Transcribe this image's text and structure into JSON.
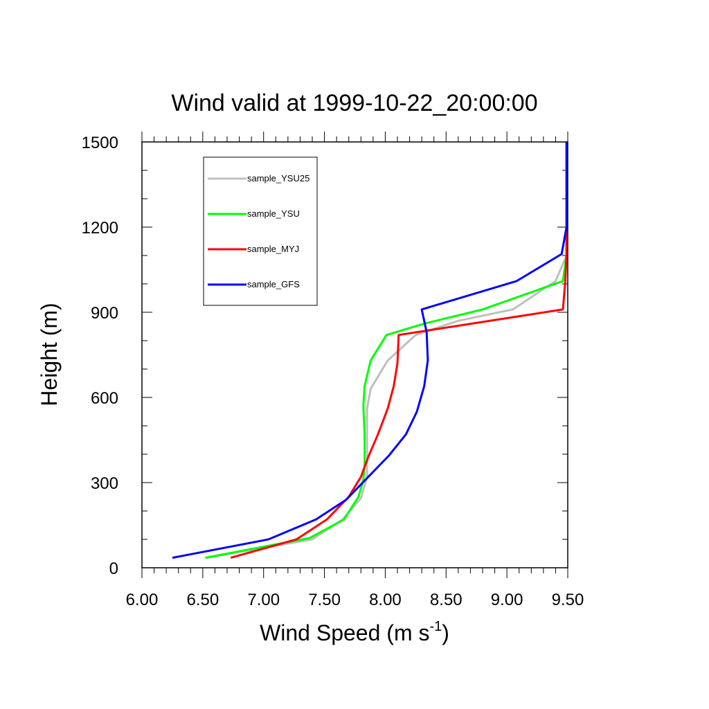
{
  "chart_data": {
    "type": "line",
    "title": "Wind valid at 1999-10-22_20:00:00",
    "xlabel": "Wind Speed (m s",
    "xlabel_sup": "-1",
    "xlabel_tail": ")",
    "ylabel": "Height (m)",
    "xlim": [
      6.0,
      9.5
    ],
    "ylim": [
      0,
      1500
    ],
    "x_ticks": [
      "6.00",
      "6.50",
      "7.00",
      "7.50",
      "8.00",
      "8.50",
      "9.00",
      "9.50"
    ],
    "y_ticks": [
      "0",
      "300",
      "600",
      "900",
      "1200",
      "1500"
    ],
    "legend_position": "top-left",
    "series": [
      {
        "name": "sample_YSU25",
        "color": "#bfbfbf",
        "x": [
          6.53,
          7.4,
          7.65,
          7.8,
          7.85,
          7.85,
          7.85,
          7.85,
          7.88,
          8.02,
          8.25,
          8.6,
          9.05,
          9.4,
          9.49,
          9.49,
          9.49
        ],
        "y": [
          35,
          100,
          170,
          245,
          320,
          400,
          480,
          560,
          630,
          730,
          820,
          870,
          910,
          1010,
          1100,
          1200,
          1500
        ]
      },
      {
        "name": "sample_YSU",
        "color": "#00ff00",
        "x": [
          6.52,
          7.38,
          7.66,
          7.78,
          7.82,
          7.83,
          7.83,
          7.82,
          7.83,
          7.88,
          8.01,
          8.32,
          8.8,
          9.46,
          9.49,
          9.49
        ],
        "y": [
          35,
          105,
          170,
          250,
          310,
          360,
          470,
          570,
          640,
          730,
          820,
          860,
          910,
          1010,
          1100,
          1200
        ]
      },
      {
        "name": "sample_MYJ",
        "color": "#ff0000",
        "x": [
          6.73,
          7.27,
          7.52,
          7.7,
          7.8,
          7.86,
          7.94,
          8.02,
          8.07,
          8.1,
          8.11,
          9.46,
          9.48,
          9.49,
          9.49
        ],
        "y": [
          35,
          100,
          170,
          250,
          320,
          390,
          470,
          560,
          640,
          720,
          820,
          910,
          1010,
          1100,
          1200
        ]
      },
      {
        "name": "sample_GFS",
        "color": "#0000ff",
        "x": [
          6.25,
          7.04,
          7.43,
          7.68,
          7.86,
          8.03,
          8.17,
          8.26,
          8.32,
          8.35,
          8.34,
          8.3,
          9.08,
          9.45,
          9.49,
          9.49
        ],
        "y": [
          35,
          100,
          170,
          240,
          320,
          395,
          470,
          550,
          640,
          730,
          830,
          910,
          1010,
          1105,
          1200,
          1500
        ]
      }
    ]
  }
}
